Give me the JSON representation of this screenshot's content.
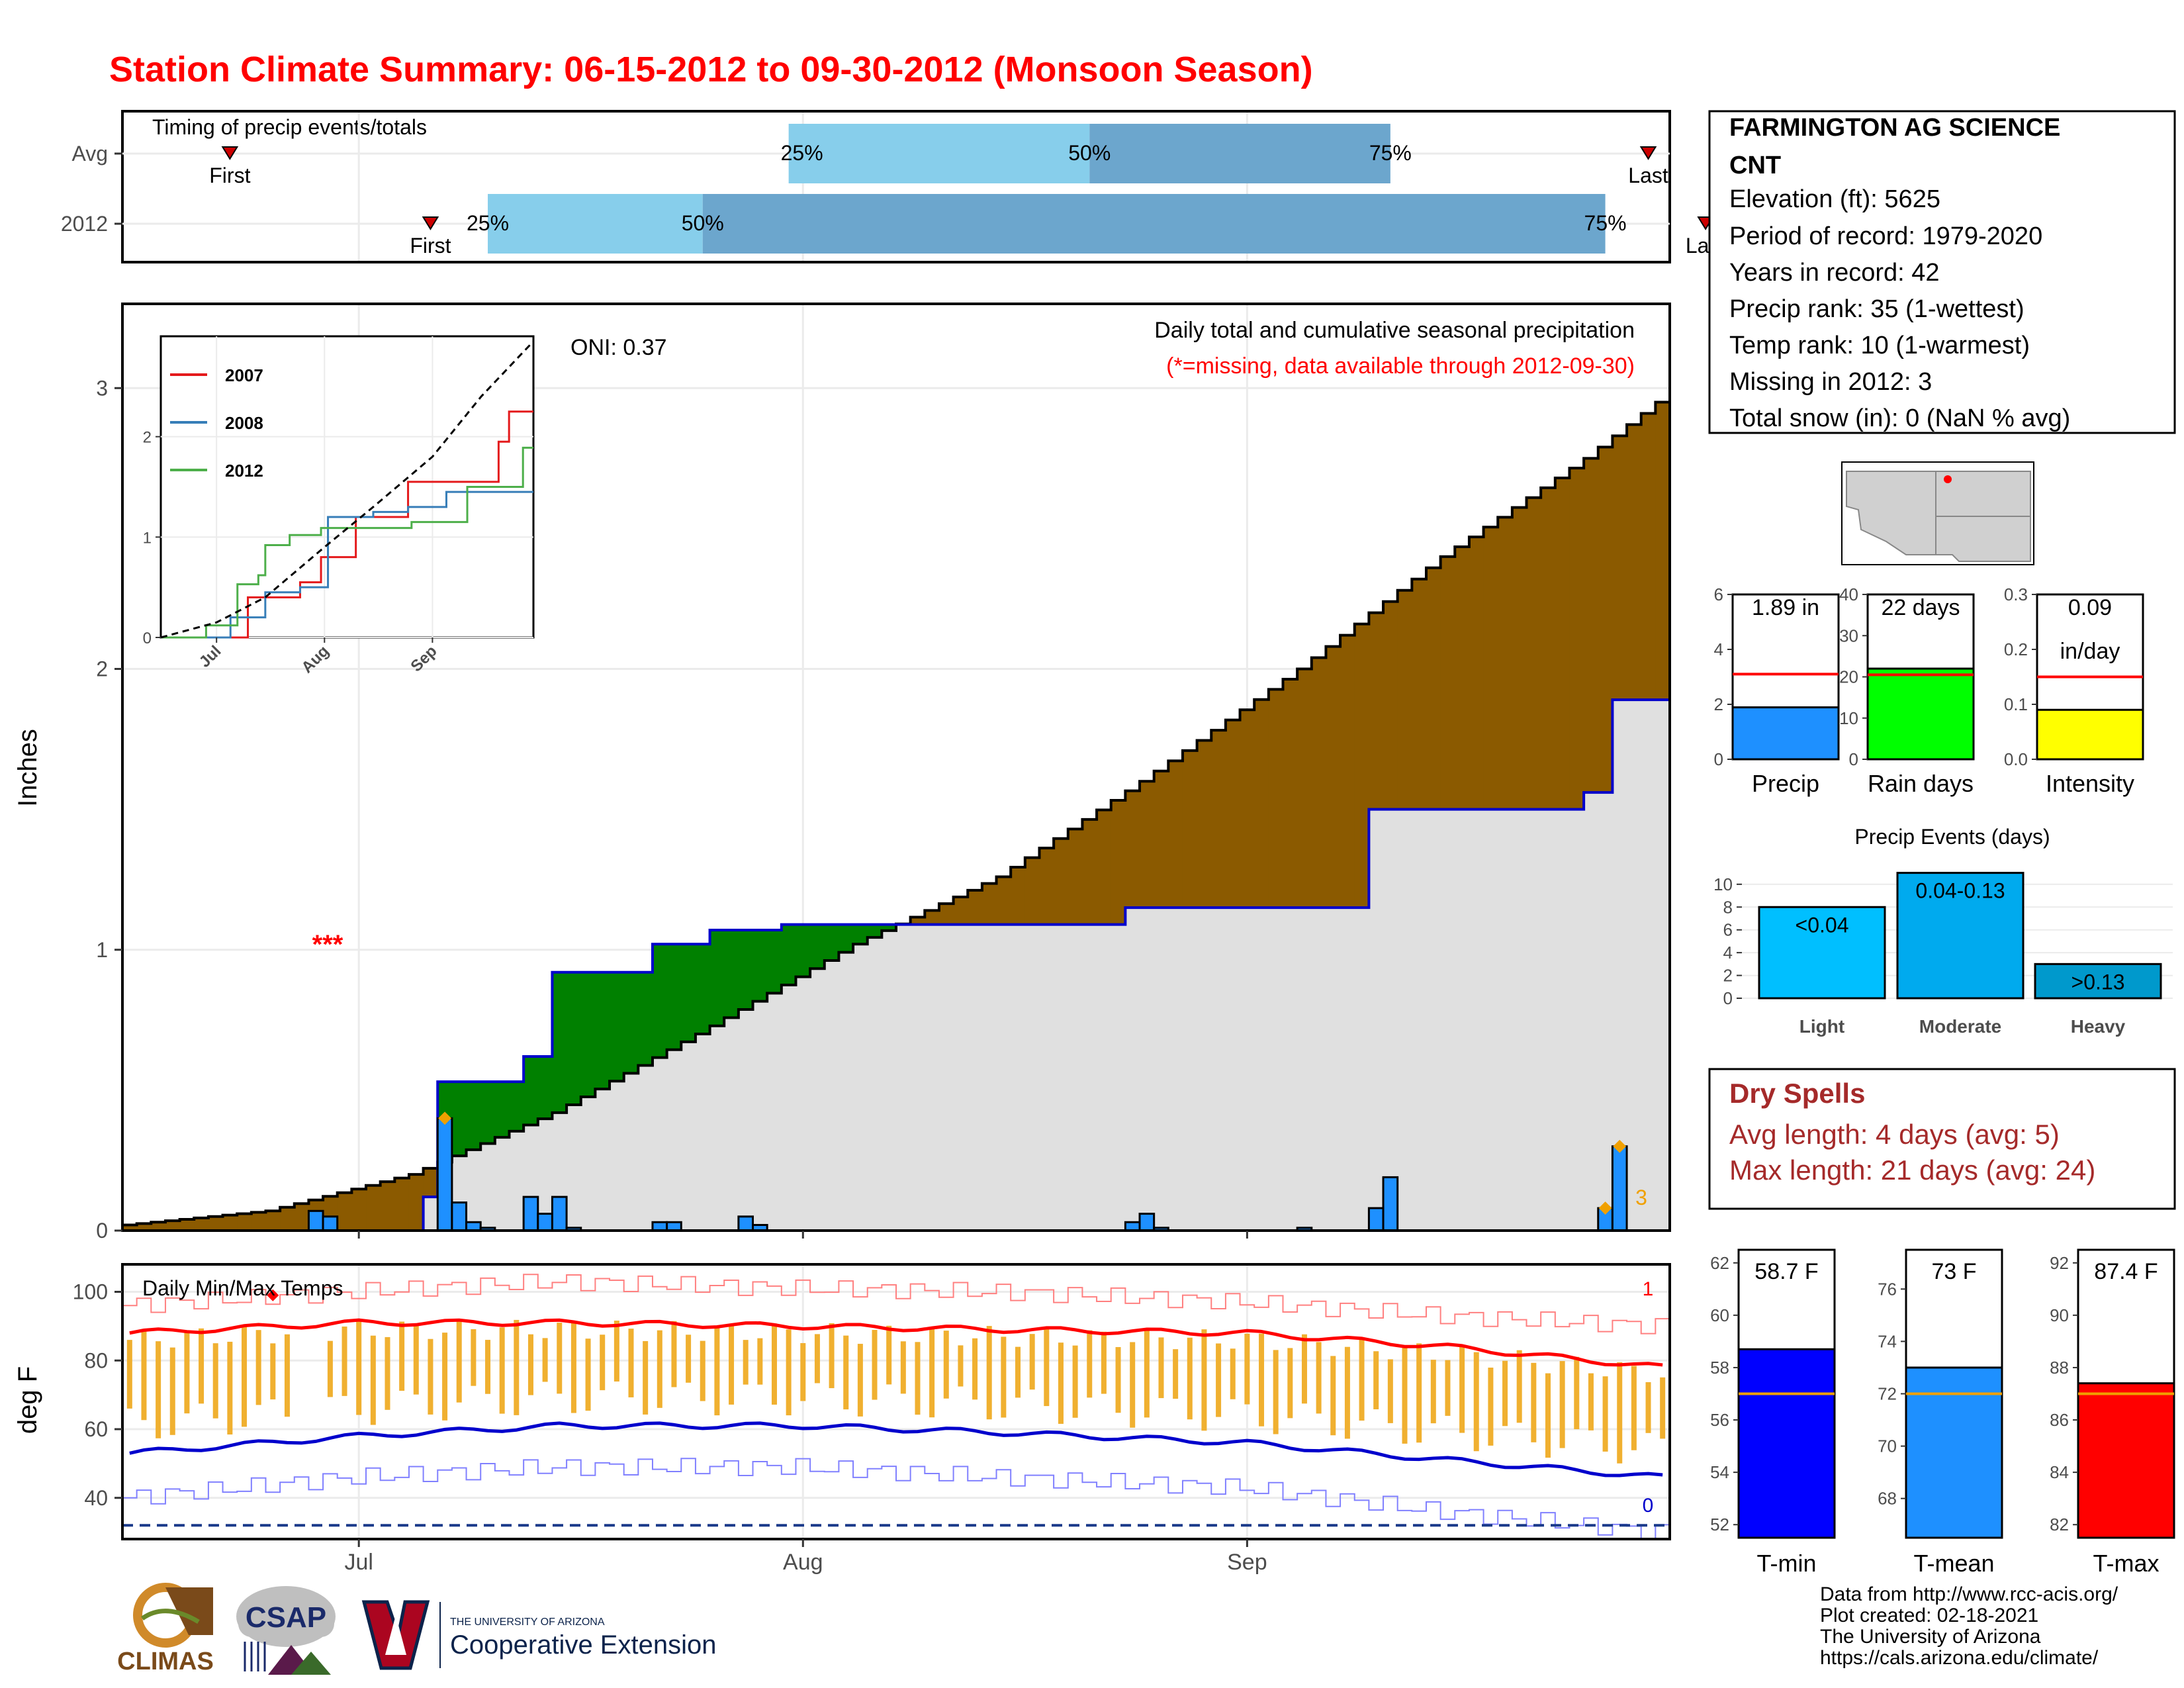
{
  "title": "Station Climate Summary: 06-15-2012 to 09-30-2012 (Monsoon Season)",
  "colors": {
    "title": "#ff0000",
    "brown": "#8b5a00",
    "green": "#008000",
    "gray": "#e0e0e0",
    "blue_line": "#0000cc",
    "bar_blue": "#1e90ff",
    "light_blue": "#87ceeb",
    "mid_blue": "#6ca6cd",
    "orange": "#f0b030",
    "red": "#ff0000",
    "drySpell": "#a52a2a"
  },
  "timing": {
    "label": "Timing of precip events/totals",
    "rows": [
      {
        "name": "Avg",
        "first_label": "First",
        "last_label": "Last",
        "first_day": 7,
        "last_day": 106,
        "p25_day": 46,
        "p50_day": 67,
        "p75_day": 88,
        "p25_label": "25%",
        "p50_label": "50%",
        "p75_label": "75%"
      },
      {
        "name": "2012",
        "first_label": "First",
        "last_label": "Last",
        "first_day": 21,
        "last_day": 110,
        "p25_day": 25,
        "p50_day": 40,
        "p75_day": 103,
        "p25_label": "25%",
        "p50_label": "50%",
        "p75_label": "75%"
      }
    ]
  },
  "main": {
    "ylabel": "Inches",
    "oni": "ONI: 0.37",
    "caption1": "Daily total and cumulative seasonal precipitation",
    "caption2": "(*=missing, data available through 2012-09-30)",
    "missing_marker": "***",
    "missing_count": "3",
    "yticks": [
      "0",
      "1",
      "2",
      "3"
    ]
  },
  "inset": {
    "legend": [
      {
        "name": "2007",
        "color": "#e41a1c"
      },
      {
        "name": "2008",
        "color": "#377eb8"
      },
      {
        "name": "2012",
        "color": "#4daf4a"
      }
    ],
    "yticks": [
      "0",
      "1",
      "2"
    ],
    "xticks": [
      "Jul",
      "Aug",
      "Sep"
    ]
  },
  "temps": {
    "label": "Daily Min/Max Temps",
    "ylabel": "deg F",
    "yticks": [
      "40",
      "60",
      "80",
      "100"
    ],
    "record_high_count": "1",
    "record_low_count": "0"
  },
  "xticks": [
    "Jul",
    "Aug",
    "Sep"
  ],
  "station": {
    "name": "FARMINGTON AG SCIENCE",
    "name2": "CNT",
    "elevation": "Elevation (ft): 5625",
    "period": "Period of record: 1979-2020",
    "years": "Years in record: 42",
    "precip_rank": "Precip rank: 35 (1-wettest)",
    "temp_rank": "Temp rank: 10 (1-warmest)",
    "missing": "Missing in 2012: 3",
    "snow": "Total snow (in): 0 (NaN % avg)"
  },
  "mini_bars": [
    {
      "label": "Precip",
      "value_text": "1.89 in",
      "value_text2": "",
      "value": 1.89,
      "avg": 3.1,
      "ymax": 6,
      "yticks": [
        "0",
        "2",
        "4",
        "6"
      ],
      "color": "#1e90ff"
    },
    {
      "label": "Rain days",
      "value_text": "22 days",
      "value_text2": "",
      "value": 22,
      "avg": 20.5,
      "ymax": 40,
      "yticks": [
        "0",
        "10",
        "20",
        "30",
        "40"
      ],
      "color": "#00ff00"
    },
    {
      "label": "Intensity",
      "value_text": "0.09",
      "value_text2": "in/day",
      "value": 0.09,
      "avg": 0.15,
      "ymax": 0.3,
      "yticks": [
        "0.0",
        "0.1",
        "0.2",
        "0.3"
      ],
      "color": "#ffff00"
    }
  ],
  "precip_events": {
    "title": "Precip Events (days)",
    "yticks": [
      "0",
      "2",
      "4",
      "6",
      "8",
      "10"
    ],
    "bars": [
      {
        "category": "Light",
        "value": 8,
        "label": "<0.04",
        "color": "#00bfff"
      },
      {
        "category": "Moderate",
        "value": 11,
        "label": "0.04-0.13",
        "color": "#00aaee"
      },
      {
        "category": "Heavy",
        "value": 3,
        "label": ">0.13",
        "color": "#0099cc"
      }
    ]
  },
  "dry_spells": {
    "title": "Dry Spells",
    "avg": "Avg length: 4 days (avg: 5)",
    "max": "Max length: 21 days (avg: 24)"
  },
  "temp_bars": [
    {
      "label": "T-min",
      "value_text": "58.7 F",
      "value": 58.7,
      "avg": 57,
      "ymin": 51.5,
      "ymax": 62.5,
      "yticks": [
        "52",
        "54",
        "56",
        "58",
        "60",
        "62"
      ],
      "color": "#0000ff"
    },
    {
      "label": "T-mean",
      "value_text": "73 F",
      "value": 73,
      "avg": 72,
      "ymin": 66.5,
      "ymax": 77.5,
      "yticks": [
        "68",
        "70",
        "72",
        "74",
        "76"
      ],
      "color": "#1e90ff"
    },
    {
      "label": "T-max",
      "value_text": "87.4 F",
      "value": 87.4,
      "avg": 87,
      "ymin": 81.5,
      "ymax": 92.5,
      "yticks": [
        "82",
        "84",
        "86",
        "88",
        "90",
        "92"
      ],
      "color": "#ff0000"
    }
  ],
  "footer": {
    "line1": "Data from http://www.rcc-acis.org/",
    "line2": "Plot created: 02-18-2021",
    "line3": "The University of Arizona",
    "line4": "https://cals.arizona.edu/climate/"
  },
  "logos": {
    "climas": "CLIMAS",
    "csap": "CSAP",
    "ua_small": "THE UNIVERSITY OF ARIZONA",
    "ua_big": "Cooperative Extension"
  },
  "chart_data": [
    {
      "type": "area",
      "title": "Daily total and cumulative seasonal precipitation",
      "ylabel": "Inches",
      "ylim": [
        0,
        3.3
      ],
      "x_range": [
        "2012-06-15",
        "2012-09-30"
      ],
      "series": [
        {
          "name": "avg",
          "x": [
            "2012-06-15",
            "2012-06-25",
            "2012-07-05",
            "2012-07-15",
            "2012-07-25",
            "2012-08-05",
            "2012-08-15",
            "2012-08-25",
            "2012-09-05",
            "2012-09-15",
            "2012-09-25",
            "2012-09-30"
          ],
          "values": [
            0.02,
            0.07,
            0.2,
            0.42,
            0.7,
            1.02,
            1.26,
            1.6,
            2.0,
            2.4,
            2.75,
            2.95
          ]
        },
        {
          "name": "2012",
          "x": [
            "2012-06-15",
            "2012-07-01",
            "2012-07-06",
            "2012-07-07",
            "2012-07-13",
            "2012-07-15",
            "2012-07-22",
            "2012-07-26",
            "2012-07-31",
            "2012-08-24",
            "2012-09-10",
            "2012-09-25",
            "2012-09-27",
            "2012-09-30"
          ],
          "values": [
            0.0,
            0.0,
            0.12,
            0.53,
            0.62,
            0.92,
            1.02,
            1.07,
            1.09,
            1.15,
            1.5,
            1.56,
            1.89,
            1.89
          ]
        },
        {
          "name": "daily",
          "x": [
            "2012-06-28",
            "2012-06-29",
            "2012-07-07",
            "2012-07-08",
            "2012-07-09",
            "2012-07-10",
            "2012-07-13",
            "2012-07-14",
            "2012-07-15",
            "2012-07-16",
            "2012-07-22",
            "2012-07-23",
            "2012-07-28",
            "2012-07-29",
            "2012-08-24",
            "2012-08-25",
            "2012-08-26",
            "2012-09-05",
            "2012-09-10",
            "2012-09-11",
            "2012-09-26",
            "2012-09-27"
          ],
          "values": [
            0.07,
            0.05,
            0.4,
            0.1,
            0.03,
            0.01,
            0.12,
            0.06,
            0.12,
            0.01,
            0.03,
            0.03,
            0.05,
            0.02,
            0.03,
            0.06,
            0.01,
            0.01,
            0.08,
            0.19,
            0.08,
            0.3
          ]
        }
      ]
    },
    {
      "type": "line",
      "title": "",
      "ylim": [
        0,
        3.0
      ],
      "x_range": [
        "2012-06-15",
        "2012-09-30"
      ],
      "series": [
        {
          "name": "2007",
          "x": [
            "2012-06-15",
            "2012-07-09",
            "2012-07-10",
            "2012-07-25",
            "2012-07-31",
            "2012-08-10",
            "2012-08-25",
            "2012-09-20",
            "2012-09-23",
            "2012-09-30"
          ],
          "values": [
            0.0,
            0.0,
            0.4,
            0.55,
            0.8,
            1.2,
            1.55,
            1.95,
            2.25,
            2.25
          ]
        },
        {
          "name": "2008",
          "x": [
            "2012-06-15",
            "2012-07-05",
            "2012-07-15",
            "2012-07-25",
            "2012-08-02",
            "2012-08-15",
            "2012-08-25",
            "2012-09-05",
            "2012-09-20",
            "2012-09-30"
          ],
          "values": [
            0.0,
            0.2,
            0.45,
            0.5,
            1.2,
            1.25,
            1.3,
            1.45,
            1.45,
            1.45
          ]
        },
        {
          "name": "2012",
          "x": [
            "2012-06-15",
            "2012-06-28",
            "2012-07-07",
            "2012-07-13",
            "2012-07-15",
            "2012-07-22",
            "2012-07-31",
            "2012-08-26",
            "2012-09-11",
            "2012-09-27",
            "2012-09-30"
          ],
          "values": [
            0.0,
            0.12,
            0.53,
            0.62,
            0.92,
            1.02,
            1.09,
            1.15,
            1.5,
            1.89,
            1.89
          ]
        },
        {
          "name": "avg",
          "x": [
            "2012-06-15",
            "2012-07-01",
            "2012-07-15",
            "2012-08-01",
            "2012-08-15",
            "2012-09-01",
            "2012-09-15",
            "2012-09-30"
          ],
          "values": [
            0.0,
            0.15,
            0.4,
            0.9,
            1.3,
            1.8,
            2.4,
            2.95
          ]
        }
      ]
    },
    {
      "type": "line",
      "title": "Daily Min/Max Temps",
      "ylabel": "deg F",
      "ylim": [
        28,
        108
      ],
      "x_range": [
        "2012-06-15",
        "2012-09-30"
      ],
      "series": [
        {
          "name": "avg_max",
          "x": [
            "2012-06-15",
            "2012-07-01",
            "2012-07-15",
            "2012-08-01",
            "2012-08-15",
            "2012-09-01",
            "2012-09-15",
            "2012-09-30"
          ],
          "values": [
            88,
            91,
            91,
            90,
            89,
            88,
            84,
            78
          ]
        },
        {
          "name": "avg_min",
          "x": [
            "2012-06-15",
            "2012-07-01",
            "2012-07-15",
            "2012-08-01",
            "2012-08-15",
            "2012-09-01",
            "2012-09-15",
            "2012-09-30"
          ],
          "values": [
            53,
            58,
            61,
            61,
            59,
            56,
            51,
            46
          ]
        },
        {
          "name": "record_high",
          "x": [
            "2012-06-15",
            "2012-07-01",
            "2012-07-15",
            "2012-08-01",
            "2012-08-15",
            "2012-09-01",
            "2012-09-15",
            "2012-09-30"
          ],
          "values": [
            96,
            100,
            103,
            101,
            100,
            97,
            93,
            90
          ]
        },
        {
          "name": "record_low",
          "x": [
            "2012-06-15",
            "2012-07-01",
            "2012-07-15",
            "2012-08-01",
            "2012-08-15",
            "2012-09-01",
            "2012-09-15",
            "2012-09-30"
          ],
          "values": [
            40,
            46,
            49,
            49,
            46,
            43,
            36,
            30
          ]
        },
        {
          "name": "freezing",
          "x": [
            "2012-06-15",
            "2012-09-30"
          ],
          "values": [
            32,
            32
          ]
        }
      ]
    },
    {
      "type": "bar",
      "title": "Precip Events (days)",
      "categories": [
        "Light",
        "Moderate",
        "Heavy"
      ],
      "values": [
        8,
        11,
        3
      ],
      "ylim": [
        0,
        11.5
      ]
    }
  ]
}
